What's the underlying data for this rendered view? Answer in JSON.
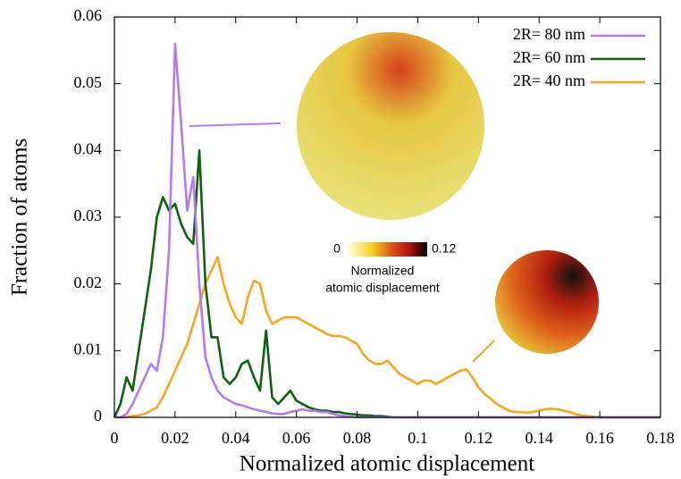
{
  "chart_data": {
    "type": "line",
    "xlabel": "Normalized atomic displacement",
    "ylabel": "Fraction of atoms",
    "xlim": [
      0,
      0.18
    ],
    "ylim": [
      0,
      0.06
    ],
    "xticks": [
      0,
      0.02,
      0.04,
      0.06,
      0.08,
      0.1,
      0.12,
      0.14,
      0.16,
      0.18
    ],
    "yticks": [
      0,
      0.01,
      0.02,
      0.03,
      0.04,
      0.05,
      0.06
    ],
    "legend": "top-right",
    "x": [
      0,
      0.002,
      0.004,
      0.006,
      0.008,
      0.01,
      0.012,
      0.014,
      0.016,
      0.018,
      0.02,
      0.022,
      0.024,
      0.026,
      0.028,
      0.03,
      0.032,
      0.034,
      0.036,
      0.038,
      0.04,
      0.042,
      0.044,
      0.046,
      0.048,
      0.05,
      0.052,
      0.054,
      0.056,
      0.058,
      0.06,
      0.062,
      0.064,
      0.066,
      0.068,
      0.07,
      0.072,
      0.074,
      0.076,
      0.078,
      0.08,
      0.082,
      0.084,
      0.086,
      0.088,
      0.09,
      0.092,
      0.094,
      0.096,
      0.098,
      0.1,
      0.102,
      0.104,
      0.106,
      0.108,
      0.11,
      0.112,
      0.114,
      0.116,
      0.118,
      0.12,
      0.122,
      0.124,
      0.126,
      0.128,
      0.13,
      0.132,
      0.134,
      0.136,
      0.138,
      0.14,
      0.142,
      0.144,
      0.146,
      0.148,
      0.15,
      0.152,
      0.154,
      0.156,
      0.158,
      0.16,
      0.162,
      0.164,
      0.166,
      0.168,
      0.17,
      0.172,
      0.174,
      0.176,
      0.178,
      0.18
    ],
    "series": [
      {
        "name": "2R= 80 nm",
        "color": "#b57bee",
        "values": [
          0,
          0,
          0.0005,
          0.002,
          0.004,
          0.006,
          0.008,
          0.007,
          0.012,
          0.025,
          0.056,
          0.044,
          0.031,
          0.036,
          0.02,
          0.009,
          0.006,
          0.004,
          0.003,
          0.0025,
          0.002,
          0.0018,
          0.0015,
          0.0012,
          0.001,
          0.0008,
          0.0006,
          0.0005,
          0.0005,
          0.0008,
          0.001,
          0.0012,
          0.001,
          0.001,
          0.0008,
          0.0008,
          0.0005,
          0.0003,
          0.0002,
          0.0001,
          0,
          0,
          0,
          0,
          0,
          0,
          0,
          0,
          0,
          0,
          0,
          0,
          0,
          0,
          0,
          0,
          0,
          0,
          0,
          0,
          0,
          0,
          0,
          0,
          0,
          0,
          0,
          0,
          0,
          0,
          0,
          0,
          0,
          0,
          0,
          0,
          0,
          0,
          0,
          0,
          0,
          0,
          0,
          0,
          0,
          0,
          0,
          0,
          0,
          0,
          0
        ]
      },
      {
        "name": "2R= 60 nm",
        "color": "#106010",
        "values": [
          0,
          0.002,
          0.006,
          0.004,
          0.01,
          0.016,
          0.022,
          0.03,
          0.033,
          0.031,
          0.032,
          0.029,
          0.027,
          0.026,
          0.04,
          0.02,
          0.012,
          0.012,
          0.006,
          0.005,
          0.006,
          0.008,
          0.0085,
          0.006,
          0.004,
          0.013,
          0.003,
          0.002,
          0.003,
          0.004,
          0.0025,
          0.002,
          0.0015,
          0.0012,
          0.001,
          0.001,
          0.0008,
          0.0008,
          0.0006,
          0.0005,
          0.0004,
          0.0003,
          0.0003,
          0.0002,
          0.0002,
          0.0001,
          0,
          0,
          0,
          0,
          0,
          0,
          0,
          0,
          0,
          0,
          0,
          0,
          0,
          0,
          0,
          0,
          0,
          0,
          0,
          0,
          0,
          0,
          0,
          0,
          0,
          0,
          0,
          0,
          0,
          0,
          0,
          0,
          0,
          0,
          0,
          0,
          0,
          0,
          0,
          0,
          0,
          0,
          0,
          0,
          0
        ]
      },
      {
        "name": "2R= 40 nm",
        "color": "#f5a623",
        "values": [
          0,
          0,
          0,
          0.0002,
          0.0003,
          0.0005,
          0.001,
          0.0015,
          0.003,
          0.005,
          0.007,
          0.009,
          0.011,
          0.014,
          0.017,
          0.02,
          0.022,
          0.024,
          0.02,
          0.017,
          0.015,
          0.014,
          0.018,
          0.0205,
          0.02,
          0.016,
          0.014,
          0.0145,
          0.015,
          0.015,
          0.015,
          0.0145,
          0.014,
          0.0135,
          0.013,
          0.0125,
          0.0122,
          0.0122,
          0.012,
          0.0115,
          0.011,
          0.0095,
          0.0085,
          0.008,
          0.008,
          0.0085,
          0.0075,
          0.0065,
          0.006,
          0.0055,
          0.005,
          0.0055,
          0.0055,
          0.005,
          0.0055,
          0.006,
          0.0065,
          0.007,
          0.0072,
          0.006,
          0.0045,
          0.0035,
          0.0028,
          0.002,
          0.0015,
          0.001,
          0.0008,
          0.0008,
          0.0007,
          0.0008,
          0.001,
          0.0012,
          0.0013,
          0.0012,
          0.001,
          0.0008,
          0.0005,
          0.0003,
          0.0002,
          0.0001,
          0,
          0,
          0,
          0,
          0,
          0,
          0,
          0,
          0,
          0,
          0
        ]
      }
    ],
    "colorbar": {
      "range": [
        0,
        0.12
      ],
      "title": [
        "Normalized",
        "atomic displacement"
      ]
    }
  }
}
